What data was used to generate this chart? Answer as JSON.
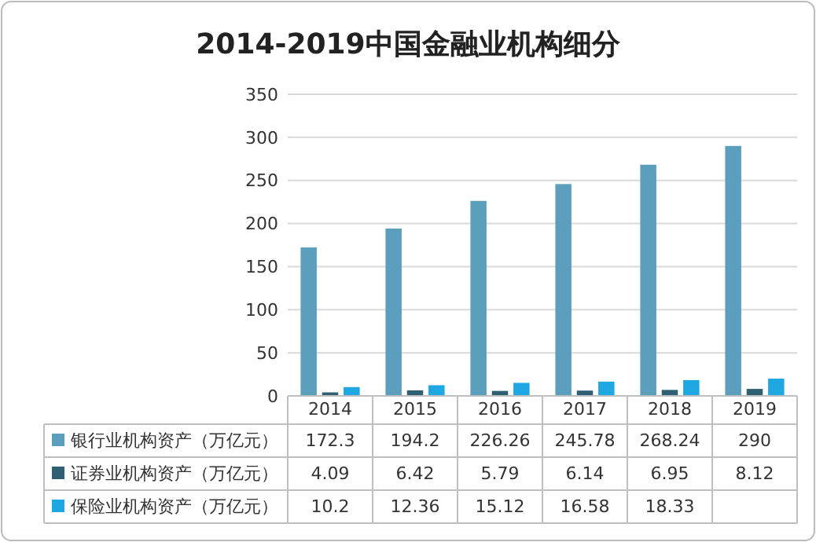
{
  "chart_data": {
    "type": "bar",
    "title": "2014-2019中国金融业机构细分",
    "categories": [
      "2014",
      "2015",
      "2016",
      "2017",
      "2018",
      "2019"
    ],
    "series": [
      {
        "name": "银行业机构资产（万亿元）",
        "color": "#5b9fbd",
        "values": [
          172.3,
          194.2,
          226.26,
          245.78,
          268.24,
          290
        ]
      },
      {
        "name": "证券业机构资产（万亿元）",
        "color": "#2f5f73",
        "values": [
          4.09,
          6.42,
          5.79,
          6.14,
          6.95,
          8.12
        ]
      },
      {
        "name": "保险业机构资产（万亿元）",
        "color": "#1ea7e1",
        "values": [
          10.2,
          12.36,
          15.12,
          16.58,
          18.33,
          20
        ],
        "value_labels": [
          "10.2",
          "12.36",
          "15.12",
          "16.58",
          "18.33",
          null
        ]
      }
    ],
    "ylim": [
      0,
      350
    ],
    "yticks": [
      0,
      50,
      100,
      150,
      200,
      250,
      300,
      350
    ],
    "grid": "y",
    "data_labels": true,
    "legend": "bottom"
  }
}
